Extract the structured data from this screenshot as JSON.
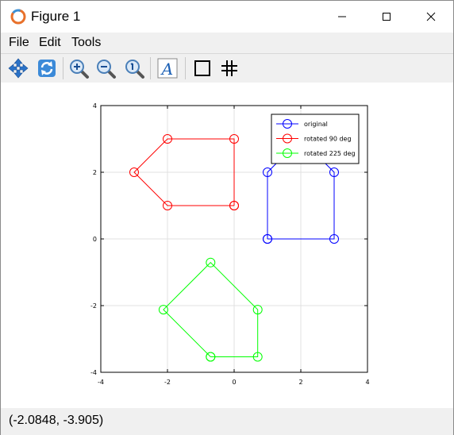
{
  "window": {
    "title": "Figure 1"
  },
  "menu": {
    "items": [
      "File",
      "Edit",
      "Tools"
    ]
  },
  "toolbar": {
    "tools": [
      "pan-icon",
      "rotate-icon",
      "zoom-in-icon",
      "zoom-out-icon",
      "zoom-reset-icon",
      "text-icon",
      "axes-box-icon",
      "grid-icon"
    ]
  },
  "status": {
    "coordinates": "(-2.0848, -3.905)"
  },
  "colors": {
    "original": "#0000ff",
    "rotated_90": "#ff0000",
    "rotated_225": "#00ff00"
  },
  "chart_data": {
    "type": "line",
    "title": "",
    "xlabel": "",
    "ylabel": "",
    "xlim": [
      -4,
      4
    ],
    "ylim": [
      -4,
      4
    ],
    "xticks": [
      -4,
      -2,
      0,
      2,
      4
    ],
    "yticks": [
      -4,
      -2,
      0,
      2,
      4
    ],
    "grid": true,
    "legend_position": "top-right",
    "marker": "circle",
    "series": [
      {
        "name": "original",
        "color": "#0000ff",
        "x": [
          1,
          3,
          3,
          2,
          1,
          1
        ],
        "y": [
          0,
          0,
          2,
          3,
          2,
          0
        ]
      },
      {
        "name": "rotated 90 deg",
        "color": "#ff0000",
        "x": [
          0,
          0,
          -2,
          -3,
          -2,
          0
        ],
        "y": [
          1,
          3,
          3,
          2,
          1,
          1
        ]
      },
      {
        "name": "rotated 225 deg",
        "color": "#00ff00",
        "x": [
          -0.707,
          0.707,
          0.707,
          -0.707,
          -2.121,
          -0.707
        ],
        "y": [
          -3.536,
          -3.536,
          -2.121,
          -0.707,
          -2.121,
          -3.536
        ]
      }
    ]
  }
}
